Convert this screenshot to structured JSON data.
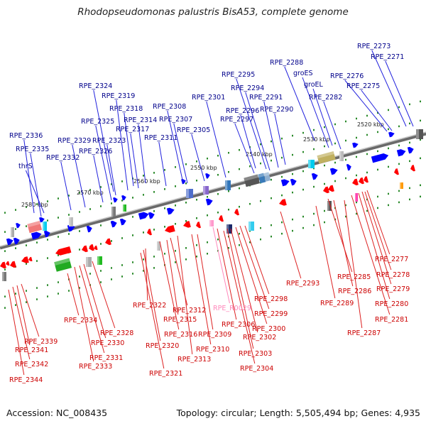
{
  "title": "Rhodopseudomonas palustris BisA53, complete genome",
  "footer": {
    "accession": "Accession: NC_008435",
    "topology": "Topology: circular; Length: 5,505,494 bp; Genes: 4,935"
  },
  "colors": {
    "forward_label": "#00008b",
    "reverse_label": "#cc0000",
    "rna_label": "#ff88bb",
    "forward_gene": "#0000ff",
    "reverse_gene": "#ff0000",
    "backbone": "#808080"
  },
  "scale_labels": [
    "2520 kbp",
    "2530 kbp",
    "2540 kbp",
    "2550 kbp",
    "2560 kbp",
    "2570 kbp",
    "2580 kbp"
  ],
  "forward_genes": [
    "RPE_2273",
    "RPE_2271",
    "RPE_2276",
    "RPE_2275",
    "RPE_2288",
    "groES",
    "groEL",
    "RPE_2282",
    "RPE_2295",
    "RPE_2294",
    "RPE_2291",
    "RPE_2290",
    "RPE_2296",
    "RPE_2297",
    "RPE_2301",
    "RPE_2324",
    "RPE_2319",
    "RPE_2318",
    "RPE_2314",
    "RPE_2308",
    "RPE_2307",
    "RPE_2305",
    "RPE_2317",
    "RPE_2311",
    "RPE_2325",
    "RPE_2323",
    "RPE_2329",
    "RPE_2326",
    "RPE_2336",
    "RPE_2335",
    "RPE_2332",
    "thrS"
  ],
  "reverse_genes": [
    "RPE_2277",
    "RPE_2278",
    "RPE_2279",
    "RPE_2280",
    "RPE_2281",
    "RPE_2285",
    "RPE_2286",
    "RPE_2289",
    "RPE_2287",
    "RPE_2293",
    "RPE_2298",
    "RPE_2299",
    "RPE_2300",
    "RPE_2302",
    "RPE_2303",
    "RPE_2304",
    "RPE_R0029",
    "RPE_2306",
    "RPE_2309",
    "RPE_2310",
    "RPE_2313",
    "RPE_2312",
    "RPE_2315",
    "RPE_2316",
    "RPE_2322",
    "RPE_2320",
    "RPE_2321",
    "RPE_2334",
    "RPE_2328",
    "RPE_2330",
    "RPE_2331",
    "RPE_2333",
    "RPE_2339",
    "RPE_2341",
    "RPE_2342",
    "RPE_2344"
  ],
  "rna_genes": [
    "RPE_R0029"
  ]
}
